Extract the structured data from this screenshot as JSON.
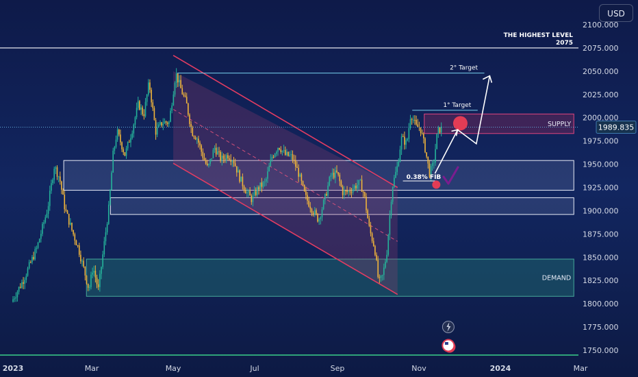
{
  "currency_button": "USD",
  "price_badge": "1989.835",
  "chart_data": {
    "type": "candlestick",
    "title": "",
    "xlabel": "",
    "ylabel": "",
    "ylim": [
      1740,
      2105
    ],
    "xlim": [
      "2023-01-01",
      "2024-03-01"
    ],
    "x_ticks": [
      {
        "date": "2023-01-01",
        "label": "2023",
        "bold": true
      },
      {
        "date": "2023-03-01",
        "label": "Mar"
      },
      {
        "date": "2023-05-01",
        "label": "May"
      },
      {
        "date": "2023-07-01",
        "label": "Jul"
      },
      {
        "date": "2023-09-01",
        "label": "Sep"
      },
      {
        "date": "2023-11-01",
        "label": "Nov"
      },
      {
        "date": "2024-01-01",
        "label": "2024",
        "bold": true
      },
      {
        "date": "2024-03-01",
        "label": "Mar"
      }
    ],
    "y_ticks": [
      {
        "value": 2100,
        "label": "2100.000"
      },
      {
        "value": 2075,
        "label": "2075.000"
      },
      {
        "value": 2050,
        "label": "2050.000"
      },
      {
        "value": 2025,
        "label": "2025.000"
      },
      {
        "value": 2000,
        "label": "2000.000"
      },
      {
        "value": 1975,
        "label": "1975.000"
      },
      {
        "value": 1950,
        "label": "1950.000"
      },
      {
        "value": 1925,
        "label": "1925.000"
      },
      {
        "value": 1900,
        "label": "1900.000"
      },
      {
        "value": 1875,
        "label": "1875.000"
      },
      {
        "value": 1850,
        "label": "1850.000"
      },
      {
        "value": 1825,
        "label": "1825.000"
      },
      {
        "value": 1800,
        "label": "1800.000"
      },
      {
        "value": 1775,
        "label": "1775.000"
      },
      {
        "value": 1750,
        "label": "1750.000"
      }
    ],
    "current_price": 1989.835,
    "price_path": [
      [
        "2023-01-01",
        1802
      ],
      [
        "2023-01-10",
        1826
      ],
      [
        "2023-01-20",
        1860
      ],
      [
        "2023-01-28",
        1902
      ],
      [
        "2023-02-02",
        1948
      ],
      [
        "2023-02-06",
        1935
      ],
      [
        "2023-02-10",
        1902
      ],
      [
        "2023-02-15",
        1880
      ],
      [
        "2023-02-20",
        1860
      ],
      [
        "2023-02-24",
        1838
      ],
      [
        "2023-02-28",
        1815
      ],
      [
        "2023-03-03",
        1840
      ],
      [
        "2023-03-07",
        1815
      ],
      [
        "2023-03-11",
        1860
      ],
      [
        "2023-03-15",
        1905
      ],
      [
        "2023-03-18",
        1960
      ],
      [
        "2023-03-21",
        1985
      ],
      [
        "2023-03-27",
        1960
      ],
      [
        "2023-04-01",
        1985
      ],
      [
        "2023-04-06",
        2015
      ],
      [
        "2023-04-10",
        2003
      ],
      [
        "2023-04-14",
        2038
      ],
      [
        "2023-04-19",
        1985
      ],
      [
        "2023-04-24",
        1995
      ],
      [
        "2023-04-29",
        1995
      ],
      [
        "2023-05-04",
        2048
      ],
      [
        "2023-05-08",
        2030
      ],
      [
        "2023-05-12",
        2015
      ],
      [
        "2023-05-16",
        1985
      ],
      [
        "2023-05-20",
        1978
      ],
      [
        "2023-05-24",
        1960
      ],
      [
        "2023-05-28",
        1945
      ],
      [
        "2023-06-02",
        1968
      ],
      [
        "2023-06-07",
        1955
      ],
      [
        "2023-06-12",
        1960
      ],
      [
        "2023-06-16",
        1955
      ],
      [
        "2023-06-21",
        1935
      ],
      [
        "2023-06-26",
        1920
      ],
      [
        "2023-06-30",
        1912
      ],
      [
        "2023-07-05",
        1925
      ],
      [
        "2023-07-10",
        1930
      ],
      [
        "2023-07-15",
        1958
      ],
      [
        "2023-07-20",
        1970
      ],
      [
        "2023-07-25",
        1960
      ],
      [
        "2023-07-30",
        1958
      ],
      [
        "2023-08-04",
        1940
      ],
      [
        "2023-08-09",
        1915
      ],
      [
        "2023-08-14",
        1902
      ],
      [
        "2023-08-19",
        1890
      ],
      [
        "2023-08-24",
        1915
      ],
      [
        "2023-08-28",
        1938
      ],
      [
        "2023-09-02",
        1940
      ],
      [
        "2023-09-06",
        1920
      ],
      [
        "2023-09-10",
        1920
      ],
      [
        "2023-09-15",
        1926
      ],
      [
        "2023-09-19",
        1930
      ],
      [
        "2023-09-22",
        1918
      ],
      [
        "2023-09-26",
        1880
      ],
      [
        "2023-09-30",
        1860
      ],
      [
        "2023-10-03",
        1822
      ],
      [
        "2023-10-06",
        1830
      ],
      [
        "2023-10-09",
        1855
      ],
      [
        "2023-10-13",
        1925
      ],
      [
        "2023-10-17",
        1948
      ],
      [
        "2023-10-20",
        1978
      ],
      [
        "2023-10-24",
        1972
      ],
      [
        "2023-10-27",
        2005
      ],
      [
        "2023-10-31",
        1990
      ],
      [
        "2023-11-03",
        1990
      ],
      [
        "2023-11-07",
        1965
      ],
      [
        "2023-11-10",
        1940
      ],
      [
        "2023-11-13",
        1950
      ],
      [
        "2023-11-16",
        1985
      ],
      [
        "2023-11-18",
        1988
      ]
    ],
    "channel": {
      "upper": [
        [
          "2023-05-01",
          2067
        ],
        [
          "2023-10-16",
          1925
        ]
      ],
      "lower": [
        [
          "2023-05-01",
          1951
        ],
        [
          "2023-10-16",
          1810
        ]
      ],
      "mid": [
        [
          "2023-05-01",
          2009
        ],
        [
          "2023-10-16",
          1867
        ]
      ],
      "top_of_fill": [
        [
          "2023-05-01",
          2050
        ],
        [
          "2023-10-16",
          1925
        ]
      ]
    },
    "zones": [
      {
        "name": "DEMAND",
        "from": "2023-02-25",
        "to": "2024-02-25",
        "low": 1808,
        "high": 1848,
        "kind": "demand"
      },
      {
        "name": "",
        "from": "2023-02-08",
        "to": "2024-02-25",
        "low": 1922,
        "high": 1954,
        "kind": "white"
      },
      {
        "name": "",
        "from": "2023-03-15",
        "to": "2024-02-25",
        "low": 1896,
        "high": 1914,
        "kind": "white"
      },
      {
        "name": "SUPPLY",
        "from": "2023-11-05",
        "to": "2024-02-25",
        "low": 1983,
        "high": 2004,
        "kind": "supply"
      }
    ],
    "highest_level": {
      "value": 2075,
      "label_line1": "THE HIGHEST LEVEL",
      "label_line2": "2075"
    },
    "targets": [
      {
        "label": "2° Target",
        "from": "2023-05-04",
        "to": "2023-12-20",
        "value": 2048
      },
      {
        "label": "1° Target",
        "from": "2023-10-27",
        "to": "2023-12-15",
        "value": 2008
      }
    ],
    "fib": {
      "label": "0.38% FIB",
      "from": "2023-10-20",
      "to": "2023-11-14",
      "value": 1932
    },
    "projection": [
      [
        "2023-11-13",
        1940
      ],
      [
        "2023-11-30",
        1987
      ],
      [
        "2023-12-14",
        1972
      ],
      [
        "2023-12-24",
        2045
      ]
    ]
  }
}
